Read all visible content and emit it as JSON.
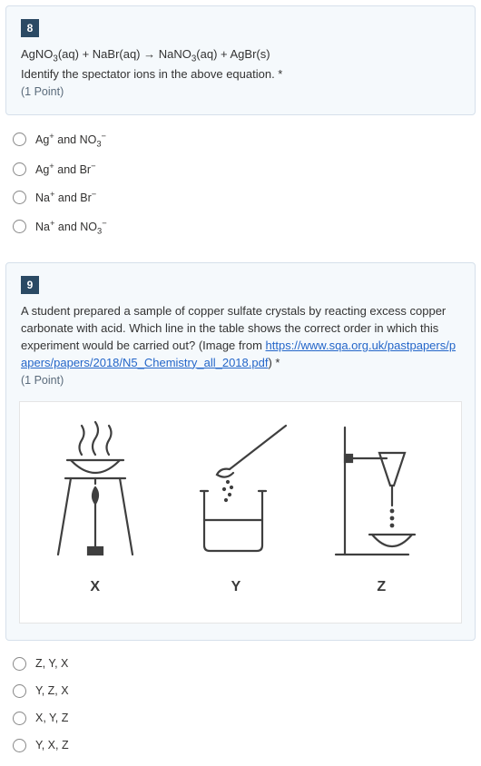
{
  "q8": {
    "number": "8",
    "equation_html": "AgNO<sub>3</sub>(aq) + NaBr(aq) → NaNO<sub>3</sub>(aq) + AgBr(s)",
    "prompt": "Identify the spectator ions in the above equation. *",
    "points": "(1 Point)",
    "options": [
      "Ag<sup>+</sup> and NO<sub>3</sub><sup>−</sup>",
      "Ag<sup>+</sup> and Br<sup>−</sup>",
      "Na<sup>+</sup> and Br<sup>−</sup>",
      "Na<sup>+</sup> and NO<sub>3</sub><sup>−</sup>"
    ]
  },
  "q9": {
    "number": "9",
    "prompt": "A student prepared a sample of copper sulfate crystals by reacting excess copper carbonate with acid.  Which line in the table shows the correct order in which this experiment would be carried out? (Image from ",
    "link_text": "https://www.sqa.org.uk/pastpapers/papers/papers/2018/N5_Chemistry_all_2018.pdf",
    "link_suffix": ") *",
    "points": "(1 Point)",
    "diagram_labels": {
      "x": "X",
      "y": "Y",
      "z": "Z"
    },
    "options": [
      "Z, Y, X",
      "Y, Z, X",
      "X, Y, Z",
      "Y, X, Z"
    ],
    "colors": {
      "card_bg": "#f5f9fc",
      "card_border": "#d6e0eb",
      "num_bg": "#2b4a64",
      "link": "#2466c9",
      "stroke": "#3f3f3f"
    }
  }
}
